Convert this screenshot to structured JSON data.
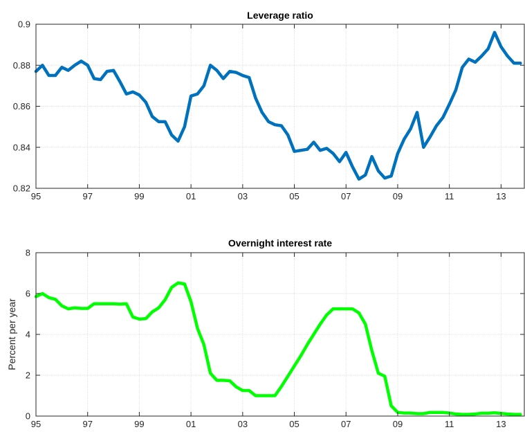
{
  "chart_data": [
    {
      "type": "line",
      "title": "Leverage ratio",
      "xlabel": "",
      "ylabel": "",
      "xlim": [
        1995,
        2013.9
      ],
      "ylim": [
        0.82,
        0.9
      ],
      "grid": true,
      "x_tick_values": [
        1995,
        1997,
        1999,
        2001,
        2003,
        2005,
        2007,
        2009,
        2011,
        2013
      ],
      "x_tick_labels": [
        "95",
        "97",
        "99",
        "01",
        "03",
        "05",
        "07",
        "09",
        "11",
        "13"
      ],
      "y_tick_values": [
        0.82,
        0.84,
        0.86,
        0.88,
        0.9
      ],
      "y_tick_labels": [
        "0.82",
        "0.84",
        "0.86",
        "0.88",
        "0.9"
      ],
      "color": "#0072bd",
      "series": [
        {
          "x": [
            1995.0,
            1995.25,
            1995.5,
            1995.75,
            1996.0,
            1996.25,
            1996.5,
            1996.75,
            1997.0,
            1997.25,
            1997.5,
            1997.75,
            1998.0,
            1998.25,
            1998.5,
            1998.75,
            1999.0,
            1999.25,
            1999.5,
            1999.75,
            2000.0,
            2000.25,
            2000.5,
            2000.75,
            2001.0,
            2001.25,
            2001.5,
            2001.75,
            2002.0,
            2002.25,
            2002.5,
            2002.75,
            2003.0,
            2003.25,
            2003.5,
            2003.75,
            2004.0,
            2004.25,
            2004.5,
            2004.75,
            2005.0,
            2005.25,
            2005.5,
            2005.75,
            2006.0,
            2006.25,
            2006.5,
            2006.75,
            2007.0,
            2007.25,
            2007.5,
            2007.75,
            2008.0,
            2008.25,
            2008.5,
            2008.75,
            2009.0,
            2009.25,
            2009.5,
            2009.75,
            2010.0,
            2010.25,
            2010.5,
            2010.75,
            2011.0,
            2011.25,
            2011.5,
            2011.75,
            2012.0,
            2012.25,
            2012.5,
            2012.75,
            2013.0,
            2013.25,
            2013.5,
            2013.75
          ],
          "values": [
            0.877,
            0.88,
            0.875,
            0.875,
            0.879,
            0.8775,
            0.88,
            0.882,
            0.88,
            0.8735,
            0.873,
            0.877,
            0.8775,
            0.872,
            0.866,
            0.867,
            0.8655,
            0.862,
            0.855,
            0.8525,
            0.8525,
            0.846,
            0.843,
            0.85,
            0.865,
            0.866,
            0.87,
            0.88,
            0.8775,
            0.8735,
            0.877,
            0.8765,
            0.875,
            0.874,
            0.864,
            0.857,
            0.8525,
            0.851,
            0.8505,
            0.846,
            0.838,
            0.8385,
            0.839,
            0.8425,
            0.8385,
            0.8395,
            0.837,
            0.833,
            0.8375,
            0.8305,
            0.8245,
            0.8265,
            0.8355,
            0.8285,
            0.825,
            0.826,
            0.837,
            0.844,
            0.849,
            0.857,
            0.84,
            0.845,
            0.8505,
            0.8545,
            0.861,
            0.868,
            0.879,
            0.883,
            0.8815,
            0.8845,
            0.888,
            0.896,
            0.889,
            0.8845,
            0.881,
            0.881
          ]
        }
      ]
    },
    {
      "type": "line",
      "title": "Overnight interest rate",
      "xlabel": "",
      "ylabel": "Percent per year",
      "xlim": [
        1995,
        2013.9
      ],
      "ylim": [
        0,
        8
      ],
      "grid": true,
      "x_tick_values": [
        1995,
        1997,
        1999,
        2001,
        2003,
        2005,
        2007,
        2009,
        2011,
        2013
      ],
      "x_tick_labels": [
        "95",
        "97",
        "99",
        "01",
        "03",
        "05",
        "07",
        "09",
        "11",
        "13"
      ],
      "y_tick_values": [
        0,
        2,
        4,
        6,
        8
      ],
      "y_tick_labels": [
        "0",
        "2",
        "4",
        "6",
        "8"
      ],
      "color": "#00ff00",
      "series": [
        {
          "x": [
            1995.0,
            1995.25,
            1995.5,
            1995.75,
            1996.0,
            1996.25,
            1996.5,
            1996.75,
            1997.0,
            1997.25,
            1997.5,
            1997.75,
            1998.0,
            1998.25,
            1998.5,
            1998.75,
            1999.0,
            1999.25,
            1999.5,
            1999.75,
            2000.0,
            2000.25,
            2000.5,
            2000.75,
            2001.0,
            2001.25,
            2001.5,
            2001.75,
            2002.0,
            2002.25,
            2002.5,
            2002.75,
            2003.0,
            2003.25,
            2003.5,
            2003.75,
            2004.0,
            2004.25,
            2004.5,
            2004.75,
            2005.0,
            2005.25,
            2005.5,
            2005.75,
            2006.0,
            2006.25,
            2006.5,
            2006.75,
            2007.0,
            2007.25,
            2007.5,
            2007.75,
            2008.0,
            2008.25,
            2008.5,
            2008.75,
            2009.0,
            2009.25,
            2009.5,
            2009.75,
            2010.0,
            2010.25,
            2010.5,
            2010.75,
            2011.0,
            2011.25,
            2011.5,
            2011.75,
            2012.0,
            2012.25,
            2012.5,
            2012.75,
            2013.0,
            2013.25,
            2013.5,
            2013.75
          ],
          "values": [
            5.85,
            6.0,
            5.8,
            5.72,
            5.4,
            5.25,
            5.3,
            5.27,
            5.27,
            5.5,
            5.5,
            5.5,
            5.5,
            5.48,
            5.5,
            4.85,
            4.75,
            4.77,
            5.1,
            5.3,
            5.7,
            6.3,
            6.52,
            6.47,
            5.6,
            4.3,
            3.5,
            2.1,
            1.75,
            1.75,
            1.73,
            1.43,
            1.25,
            1.25,
            1.0,
            1.0,
            1.0,
            1.0,
            1.45,
            1.95,
            2.45,
            2.95,
            3.5,
            4.0,
            4.5,
            4.95,
            5.25,
            5.25,
            5.25,
            5.25,
            5.05,
            4.5,
            3.2,
            2.1,
            1.95,
            0.5,
            0.18,
            0.15,
            0.15,
            0.12,
            0.12,
            0.18,
            0.18,
            0.18,
            0.15,
            0.1,
            0.08,
            0.08,
            0.1,
            0.14,
            0.14,
            0.16,
            0.13,
            0.1,
            0.08,
            0.08
          ]
        }
      ]
    }
  ]
}
